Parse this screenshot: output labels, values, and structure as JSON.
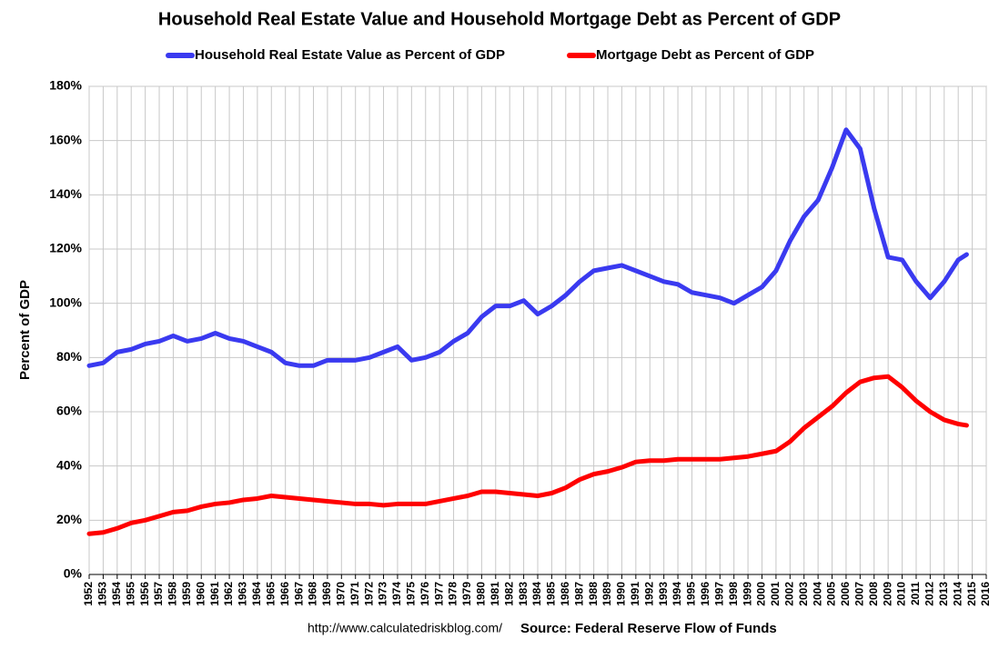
{
  "chart_data": {
    "type": "line",
    "title": "Household Real Estate Value and Household Mortgage Debt as Percent of GDP",
    "ylabel": "Percent of GDP",
    "source_url": "http://www.calculatedriskblog.com/",
    "source": "Source: Federal Reserve Flow of Funds",
    "legend": "top",
    "grid": true,
    "x": [
      1952,
      1953,
      1954,
      1955,
      1956,
      1957,
      1958,
      1959,
      1960,
      1961,
      1962,
      1963,
      1964,
      1965,
      1966,
      1967,
      1968,
      1969,
      1970,
      1971,
      1972,
      1973,
      1974,
      1975,
      1976,
      1977,
      1978,
      1979,
      1980,
      1981,
      1982,
      1983,
      1984,
      1985,
      1986,
      1987,
      1988,
      1989,
      1990,
      1991,
      1992,
      1993,
      1994,
      1995,
      1996,
      1997,
      1998,
      1999,
      2000,
      2001,
      2002,
      2003,
      2004,
      2005,
      2006,
      2007,
      2008,
      2009,
      2010,
      2011,
      2012,
      2013,
      2014,
      2014.6
    ],
    "series": [
      {
        "name": "Household Real Estate Value as Percent of GDP",
        "color": "#3a3af0",
        "values": [
          77,
          78,
          82,
          83,
          85,
          86,
          88,
          86,
          87,
          89,
          87,
          86,
          84,
          82,
          78,
          77,
          77,
          79,
          79,
          79,
          80,
          82,
          84,
          79,
          80,
          82,
          86,
          89,
          95,
          99,
          99,
          101,
          96,
          99,
          103,
          108,
          112,
          113,
          114,
          112,
          110,
          108,
          107,
          104,
          103,
          102,
          100,
          103,
          106,
          112,
          123,
          132,
          138,
          150,
          164,
          157,
          135,
          117,
          116,
          108,
          102,
          108,
          116,
          118
        ]
      },
      {
        "name": "Mortgage Debt as Percent of GDP",
        "color": "#ff0000",
        "values": [
          15,
          15.5,
          17,
          19,
          20,
          21.5,
          23,
          23.5,
          25,
          26,
          26.5,
          27.5,
          28,
          29,
          28.5,
          28,
          27.5,
          27,
          26.5,
          26,
          26,
          25.5,
          26,
          26,
          26,
          27,
          28,
          29,
          30.5,
          30.5,
          30,
          29.5,
          29,
          30,
          32,
          35,
          37,
          38,
          39.5,
          41.5,
          42,
          42,
          42.5,
          42.5,
          42.5,
          42.5,
          43,
          43.5,
          44.5,
          45.5,
          49,
          54,
          58,
          62,
          67,
          71,
          72.5,
          73,
          69,
          64,
          60,
          57,
          55.5,
          55
        ]
      }
    ],
    "xlim": [
      1952,
      2016
    ],
    "xticks": [
      1952,
      1953,
      1954,
      1955,
      1956,
      1957,
      1958,
      1959,
      1960,
      1961,
      1962,
      1963,
      1964,
      1965,
      1966,
      1967,
      1968,
      1969,
      1970,
      1971,
      1972,
      1973,
      1974,
      1975,
      1976,
      1977,
      1978,
      1979,
      1980,
      1981,
      1982,
      1983,
      1984,
      1985,
      1986,
      1987,
      1988,
      1989,
      1990,
      1991,
      1992,
      1993,
      1994,
      1995,
      1996,
      1997,
      1998,
      1999,
      2000,
      2001,
      2002,
      2003,
      2004,
      2005,
      2006,
      2007,
      2008,
      2009,
      2010,
      2011,
      2012,
      2013,
      2014,
      2015,
      2016
    ],
    "ylim": [
      0,
      180
    ],
    "yticks": [
      {
        "value": 0,
        "label": "0%"
      },
      {
        "value": 20,
        "label": "20%"
      },
      {
        "value": 40,
        "label": "40%"
      },
      {
        "value": 60,
        "label": "60%"
      },
      {
        "value": 80,
        "label": "80%"
      },
      {
        "value": 100,
        "label": "100%"
      },
      {
        "value": 120,
        "label": "120%"
      },
      {
        "value": 140,
        "label": "140%"
      },
      {
        "value": 160,
        "label": "160%"
      },
      {
        "value": 180,
        "label": "180%"
      }
    ]
  }
}
